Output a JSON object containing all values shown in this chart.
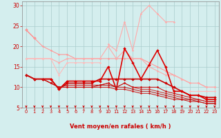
{
  "x": [
    0,
    1,
    2,
    3,
    4,
    5,
    6,
    7,
    8,
    9,
    10,
    11,
    12,
    13,
    14,
    15,
    16,
    17,
    18,
    19,
    20,
    21,
    22,
    23
  ],
  "series": [
    {
      "y": [
        24,
        22,
        null,
        null,
        null,
        null,
        null,
        null,
        null,
        null,
        null,
        null,
        null,
        null,
        null,
        null,
        null,
        null,
        null,
        null,
        null,
        null,
        null,
        null
      ],
      "color": "#ff7777",
      "lw": 0.9,
      "marker": "D",
      "ms": 2.0
    },
    {
      "y": [
        24,
        22,
        20,
        19,
        18,
        18,
        17,
        17,
        17,
        17,
        17,
        17,
        17,
        17,
        17,
        16,
        15,
        14,
        13,
        12,
        11,
        11,
        10,
        10
      ],
      "color": "#ff9999",
      "lw": 0.8,
      "marker": "D",
      "ms": 1.5
    },
    {
      "y": [
        17,
        17,
        17,
        17,
        16,
        17,
        17,
        17,
        17,
        17,
        20,
        17,
        19,
        17,
        17,
        15,
        14,
        13,
        13,
        12,
        11,
        11,
        10,
        10
      ],
      "color": "#ffaaaa",
      "lw": 0.8,
      "marker": "D",
      "ms": 1.5
    },
    {
      "y": [
        17,
        17,
        17,
        17,
        13,
        16,
        16,
        16,
        16,
        16,
        null,
        null,
        null,
        null,
        null,
        null,
        null,
        null,
        null,
        null,
        null,
        null,
        null,
        null
      ],
      "color": "#ffbbbb",
      "lw": 0.8,
      "marker": "D",
      "ms": 1.5
    },
    {
      "y": [
        null,
        null,
        null,
        null,
        null,
        null,
        null,
        null,
        null,
        null,
        20.5,
        19,
        26,
        19,
        28,
        30,
        28,
        26,
        26,
        null,
        null,
        null,
        null,
        null
      ],
      "color": "#ffaaaa",
      "lw": 0.8,
      "marker": "D",
      "ms": 1.5
    },
    {
      "y": [
        null,
        null,
        null,
        null,
        null,
        null,
        null,
        null,
        null,
        null,
        null,
        null,
        null,
        null,
        null,
        null,
        null,
        null,
        null,
        null,
        9,
        9,
        9,
        9
      ],
      "color": "#ffbbbb",
      "lw": 0.8,
      "marker": "D",
      "ms": 1.5
    },
    {
      "y": [
        13,
        12,
        12,
        12,
        9.5,
        11,
        11,
        11,
        11,
        12,
        12,
        12,
        12,
        12,
        12,
        12,
        12,
        11,
        10,
        9,
        8,
        8,
        7.5,
        7.5
      ],
      "color": "#cc0000",
      "lw": 1.2,
      "marker": "D",
      "ms": 2.0
    },
    {
      "y": [
        13,
        12,
        12,
        12,
        9.5,
        11.5,
        11.5,
        11.5,
        11.5,
        11.5,
        15,
        9.5,
        19.5,
        16,
        12,
        15.5,
        19,
        15,
        9,
        9,
        8,
        8,
        7,
        7
      ],
      "color": "#dd0000",
      "lw": 1.2,
      "marker": "D",
      "ms": 2.0
    },
    {
      "y": [
        13,
        12,
        12,
        11,
        10,
        10.5,
        10.5,
        10.5,
        10.5,
        10.5,
        11,
        10,
        11,
        10,
        10,
        10,
        10,
        9,
        8.5,
        8,
        7.5,
        7,
        6.5,
        6.5
      ],
      "color": "#cc0000",
      "lw": 0.7,
      "marker": "D",
      "ms": 1.5
    },
    {
      "y": [
        13,
        12,
        12,
        11,
        10,
        10.5,
        10.5,
        10.5,
        10.5,
        10.5,
        11,
        10,
        11,
        10,
        9.5,
        9.5,
        9,
        8.5,
        8,
        7.5,
        7,
        7,
        6.5,
        6.5
      ],
      "color": "#cc2222",
      "lw": 0.7,
      "marker": "D",
      "ms": 1.5
    },
    {
      "y": [
        13,
        12,
        12,
        11,
        10,
        10,
        10,
        10,
        10,
        10.5,
        10.5,
        10,
        10,
        9.5,
        9,
        9,
        8.5,
        8,
        7.5,
        7,
        7,
        6.5,
        6,
        6
      ],
      "color": "#bb1111",
      "lw": 0.7,
      "marker": "D",
      "ms": 1.5
    },
    {
      "y": [
        13,
        12,
        12,
        11,
        10,
        10,
        10,
        10,
        10,
        10,
        10,
        9.5,
        9.5,
        9,
        8.5,
        8.5,
        8,
        7.5,
        7,
        7,
        6.5,
        6.5,
        6,
        6
      ],
      "color": "#cc1111",
      "lw": 0.7,
      "marker": "D",
      "ms": 1.5
    }
  ],
  "xlim": [
    -0.5,
    23.5
  ],
  "ylim": [
    5,
    31
  ],
  "yticks": [
    5,
    10,
    15,
    20,
    25,
    30
  ],
  "xticks": [
    0,
    1,
    2,
    3,
    4,
    5,
    6,
    7,
    8,
    9,
    10,
    11,
    12,
    13,
    14,
    15,
    16,
    17,
    18,
    19,
    20,
    21,
    22,
    23
  ],
  "xlabel": "Vent moyen/en rafales ( km/h )",
  "bg_color": "#d4eeee",
  "grid_color": "#aacccc",
  "tick_color": "#cc0000",
  "label_color": "#cc0000",
  "arrow_color": "#cc0000",
  "xlabel_fontsize": 6.0,
  "xtick_fontsize": 4.8,
  "ytick_fontsize": 5.5
}
